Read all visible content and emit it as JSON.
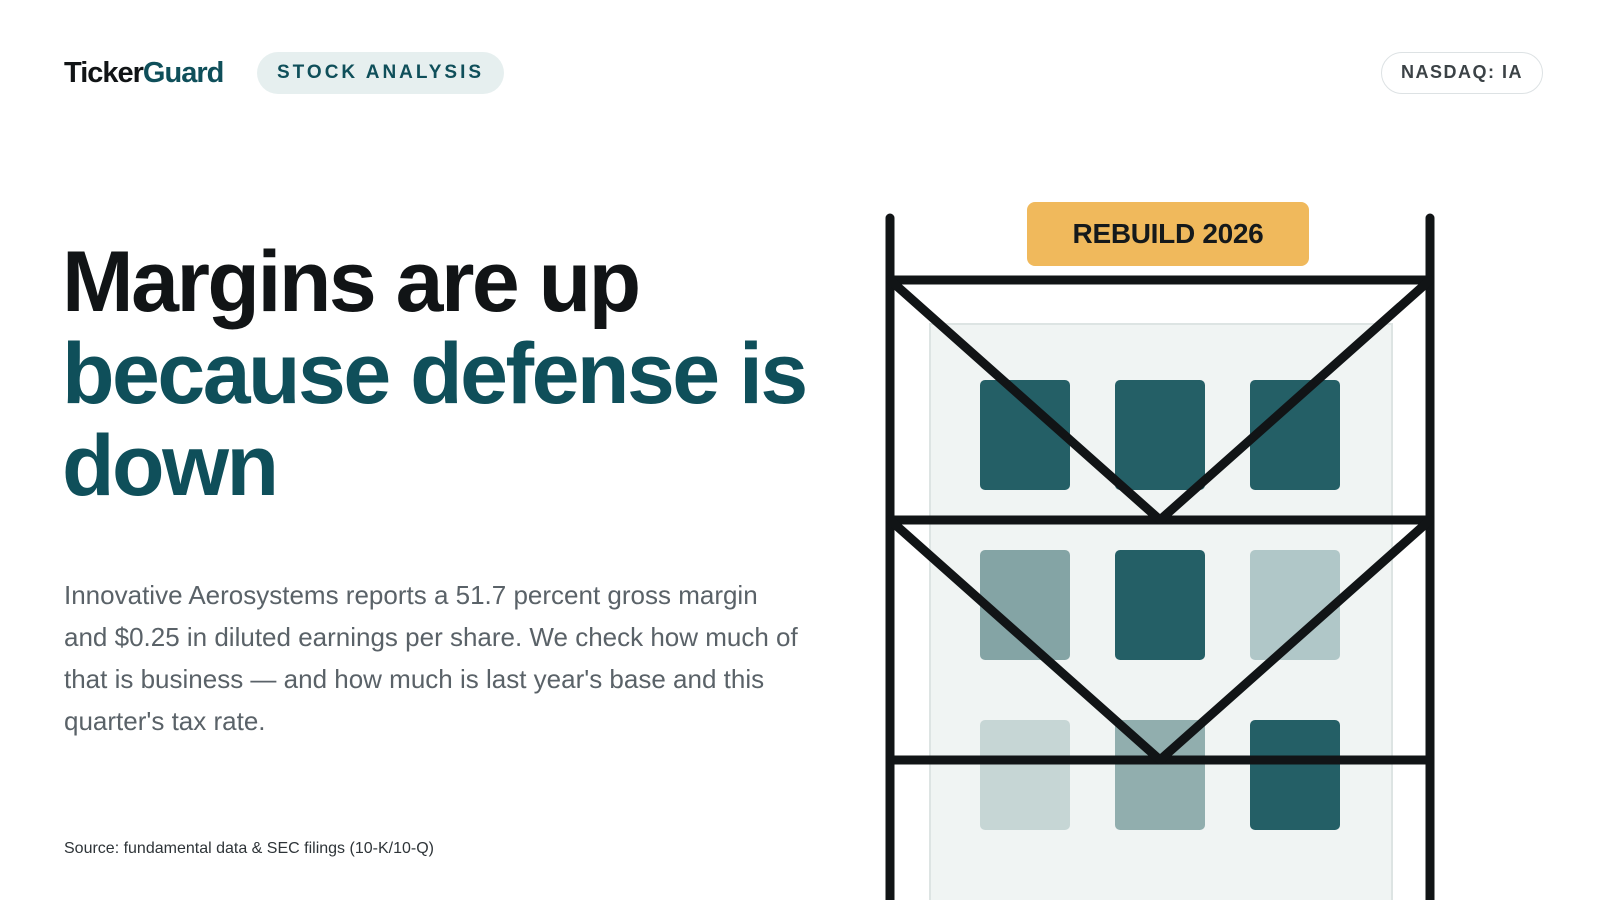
{
  "brand": {
    "part1": "Ticker",
    "part2": "Guard"
  },
  "category_tag": "STOCK ANALYSIS",
  "ticker_badge": "NASDAQ: IA",
  "headline": {
    "line1": "Margins are up",
    "line2": "because defense is down"
  },
  "summary": "Innovative Aerosystems reports a 51.7 percent gross margin and $0.25 in diluted earnings per share. We check how much of that is business — and how much is last year's base and this quarter's tax rate.",
  "source": "Source: fundamental data & SEC filings (10-K/10-Q)",
  "illustration": {
    "banner": "REBUILD 2026",
    "icon": "scaffolding-building-icon",
    "colors": {
      "accent": "#0f4f5a",
      "window_dark": "#245f66",
      "window_mid": "#84a4a5",
      "window_light": "#b0c7c8",
      "banner": "#f0b95c",
      "frame": "#111416"
    }
  }
}
